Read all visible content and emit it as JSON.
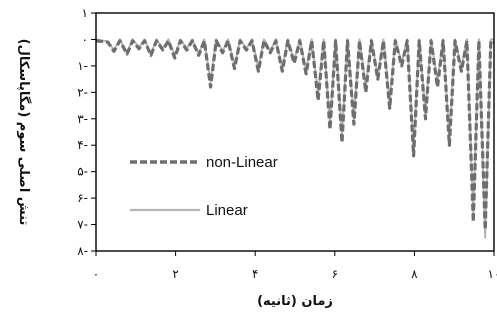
{
  "chart_data": {
    "type": "line",
    "title": "",
    "xlabel": "زمان (ثانیه)",
    "ylabel": "تنش اصلی سوم (مگاپاسکال)",
    "xlim": [
      0,
      10
    ],
    "ylim": [
      -8,
      1
    ],
    "x_ticks": [
      {
        "value": 0,
        "label": "۰"
      },
      {
        "value": 2,
        "label": "۲"
      },
      {
        "value": 4,
        "label": "۴"
      },
      {
        "value": 6,
        "label": "۶"
      },
      {
        "value": 8,
        "label": "۸"
      },
      {
        "value": 10,
        "label": "۱۰"
      }
    ],
    "y_ticks": [
      {
        "value": 1,
        "label": "۱"
      },
      {
        "value": 0,
        "label": "۰"
      },
      {
        "value": -1,
        "label": "۱-"
      },
      {
        "value": -2,
        "label": "۲-"
      },
      {
        "value": -3,
        "label": "۳-"
      },
      {
        "value": -4,
        "label": "۴-"
      },
      {
        "value": -5,
        "label": "۵-"
      },
      {
        "value": -6,
        "label": "۶-"
      },
      {
        "value": -7,
        "label": "۷-"
      },
      {
        "value": -8,
        "label": "۸-"
      }
    ],
    "grid": false,
    "legend_position": "bottom-left",
    "series": [
      {
        "name": "non-Linear",
        "color": "#6e6e6e",
        "dash": "dashed",
        "x": [
          0,
          0.3,
          0.45,
          0.6,
          0.78,
          0.92,
          1.08,
          1.22,
          1.38,
          1.52,
          1.68,
          1.82,
          1.98,
          2.12,
          2.28,
          2.42,
          2.58,
          2.72,
          2.88,
          3.02,
          3.18,
          3.32,
          3.48,
          3.62,
          3.78,
          3.92,
          4.08,
          4.22,
          4.38,
          4.52,
          4.68,
          4.82,
          4.98,
          5.12,
          5.28,
          5.42,
          5.58,
          5.72,
          5.88,
          6.02,
          6.18,
          6.32,
          6.48,
          6.62,
          6.78,
          6.92,
          7.08,
          7.22,
          7.38,
          7.52,
          7.68,
          7.82,
          7.98,
          8.12,
          8.28,
          8.42,
          8.58,
          8.72,
          8.88,
          9.02,
          9.18,
          9.32,
          9.48,
          9.62,
          9.78,
          9.92,
          10
        ],
        "values": [
          -0.05,
          -0.1,
          -0.45,
          -0.05,
          -0.55,
          -0.05,
          -0.35,
          -0.05,
          -0.6,
          -0.05,
          -0.4,
          -0.05,
          -0.7,
          -0.05,
          -0.4,
          -0.05,
          -0.6,
          -0.05,
          -1.8,
          -0.05,
          -0.5,
          -0.05,
          -1.1,
          -0.05,
          -0.4,
          -0.05,
          -1.2,
          -0.05,
          -0.5,
          -0.05,
          -1.2,
          -0.05,
          -0.9,
          -0.05,
          -1.3,
          -0.05,
          -2.3,
          -0.05,
          -3.4,
          -0.05,
          -3.9,
          -0.05,
          -3.2,
          -0.05,
          -2.0,
          -0.05,
          -1.5,
          -0.05,
          -2.6,
          -0.05,
          -1.0,
          -0.05,
          -4.4,
          -0.05,
          -3.0,
          -0.05,
          -1.8,
          -0.05,
          -4.0,
          -0.05,
          -1.2,
          -0.05,
          -6.9,
          -0.05,
          -7.2,
          -0.05,
          -0.1
        ]
      },
      {
        "name": "Linear",
        "color": "#b4b4b4",
        "dash": "solid",
        "x": [
          0,
          0.3,
          0.45,
          0.6,
          0.78,
          0.92,
          1.08,
          1.22,
          1.38,
          1.52,
          1.68,
          1.82,
          1.98,
          2.12,
          2.28,
          2.42,
          2.58,
          2.72,
          2.88,
          3.02,
          3.18,
          3.32,
          3.48,
          3.62,
          3.78,
          3.92,
          4.08,
          4.22,
          4.38,
          4.52,
          4.68,
          4.82,
          4.98,
          5.12,
          5.28,
          5.42,
          5.58,
          5.72,
          5.88,
          6.02,
          6.18,
          6.32,
          6.48,
          6.62,
          6.78,
          6.92,
          7.08,
          7.22,
          7.38,
          7.52,
          7.68,
          7.82,
          7.98,
          8.12,
          8.28,
          8.42,
          8.58,
          8.72,
          8.88,
          9.02,
          9.18,
          9.32,
          9.48,
          9.62,
          9.78,
          9.92,
          10
        ],
        "values": [
          0.0,
          -0.08,
          -0.4,
          0.0,
          -0.5,
          0.0,
          -0.3,
          0.0,
          -0.55,
          0.0,
          -0.35,
          0.0,
          -0.6,
          0.0,
          -0.35,
          0.0,
          -0.55,
          0.0,
          -1.6,
          0.0,
          -0.45,
          0.0,
          -1.0,
          0.0,
          -0.35,
          0.0,
          -1.1,
          0.0,
          -0.45,
          0.0,
          -1.1,
          0.0,
          -0.8,
          0.0,
          -1.2,
          0.0,
          -2.1,
          0.0,
          -3.2,
          0.0,
          -3.6,
          0.0,
          -3.0,
          0.0,
          -1.8,
          0.0,
          -1.4,
          0.0,
          -2.4,
          0.0,
          -0.9,
          0.0,
          -4.2,
          0.0,
          -2.8,
          0.0,
          -1.6,
          0.0,
          -3.8,
          0.0,
          -1.1,
          0.0,
          -6.6,
          0.0,
          -7.5,
          0.0,
          0.0
        ]
      }
    ]
  }
}
